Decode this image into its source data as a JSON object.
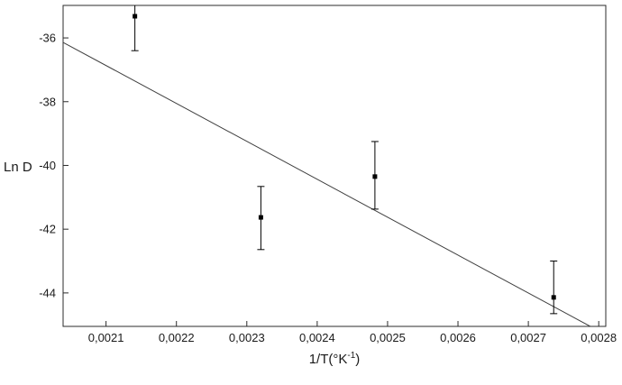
{
  "figure": {
    "background": "#ffffff",
    "axis_color": "#2b2b2b",
    "text_color": "#1a1a1a"
  },
  "chart_data": {
    "type": "scatter",
    "title": "",
    "ylabel": "Ln D",
    "xlabel": {
      "prefix": "1/T(°K",
      "sup": "-1",
      "suffix": ")"
    },
    "xlim": [
      0.002039,
      0.00281
    ],
    "ylim": [
      -45.05,
      -34.98
    ],
    "grid": false,
    "legend": "none",
    "x_ticks": [
      {
        "value": 0.0021,
        "label": "0,0021"
      },
      {
        "value": 0.0022,
        "label": "0,0022"
      },
      {
        "value": 0.0023,
        "label": "0,0023"
      },
      {
        "value": 0.0024,
        "label": "0,0024"
      },
      {
        "value": 0.0025,
        "label": "0,0025"
      },
      {
        "value": 0.0026,
        "label": "0,0026"
      },
      {
        "value": 0.0027,
        "label": "0,0027"
      },
      {
        "value": 0.0028,
        "label": "0,0028"
      }
    ],
    "y_ticks": [
      {
        "value": -36,
        "label": "-36"
      },
      {
        "value": -38,
        "label": "-38"
      },
      {
        "value": -40,
        "label": "-40"
      },
      {
        "value": -42,
        "label": "-42"
      },
      {
        "value": -44,
        "label": "-44"
      }
    ],
    "points": [
      {
        "x": 0.002141,
        "y": -35.32,
        "err_low": -36.4,
        "err_high": -34.9
      },
      {
        "x": 0.00232,
        "y": -41.63,
        "err_low": -42.64,
        "err_high": -40.66
      },
      {
        "x": 0.002482,
        "y": -40.35,
        "err_low": -41.37,
        "err_high": -39.25
      },
      {
        "x": 0.002736,
        "y": -44.14,
        "err_low": -44.65,
        "err_high": -43.0
      }
    ],
    "fit_line": {
      "x1": 0.002039,
      "y1": -36.14,
      "x2": 0.002788,
      "y2": -45.05
    },
    "marker": {
      "shape": "square",
      "size": 5,
      "color": "#000000"
    },
    "line_color": "#3f3f3f"
  }
}
